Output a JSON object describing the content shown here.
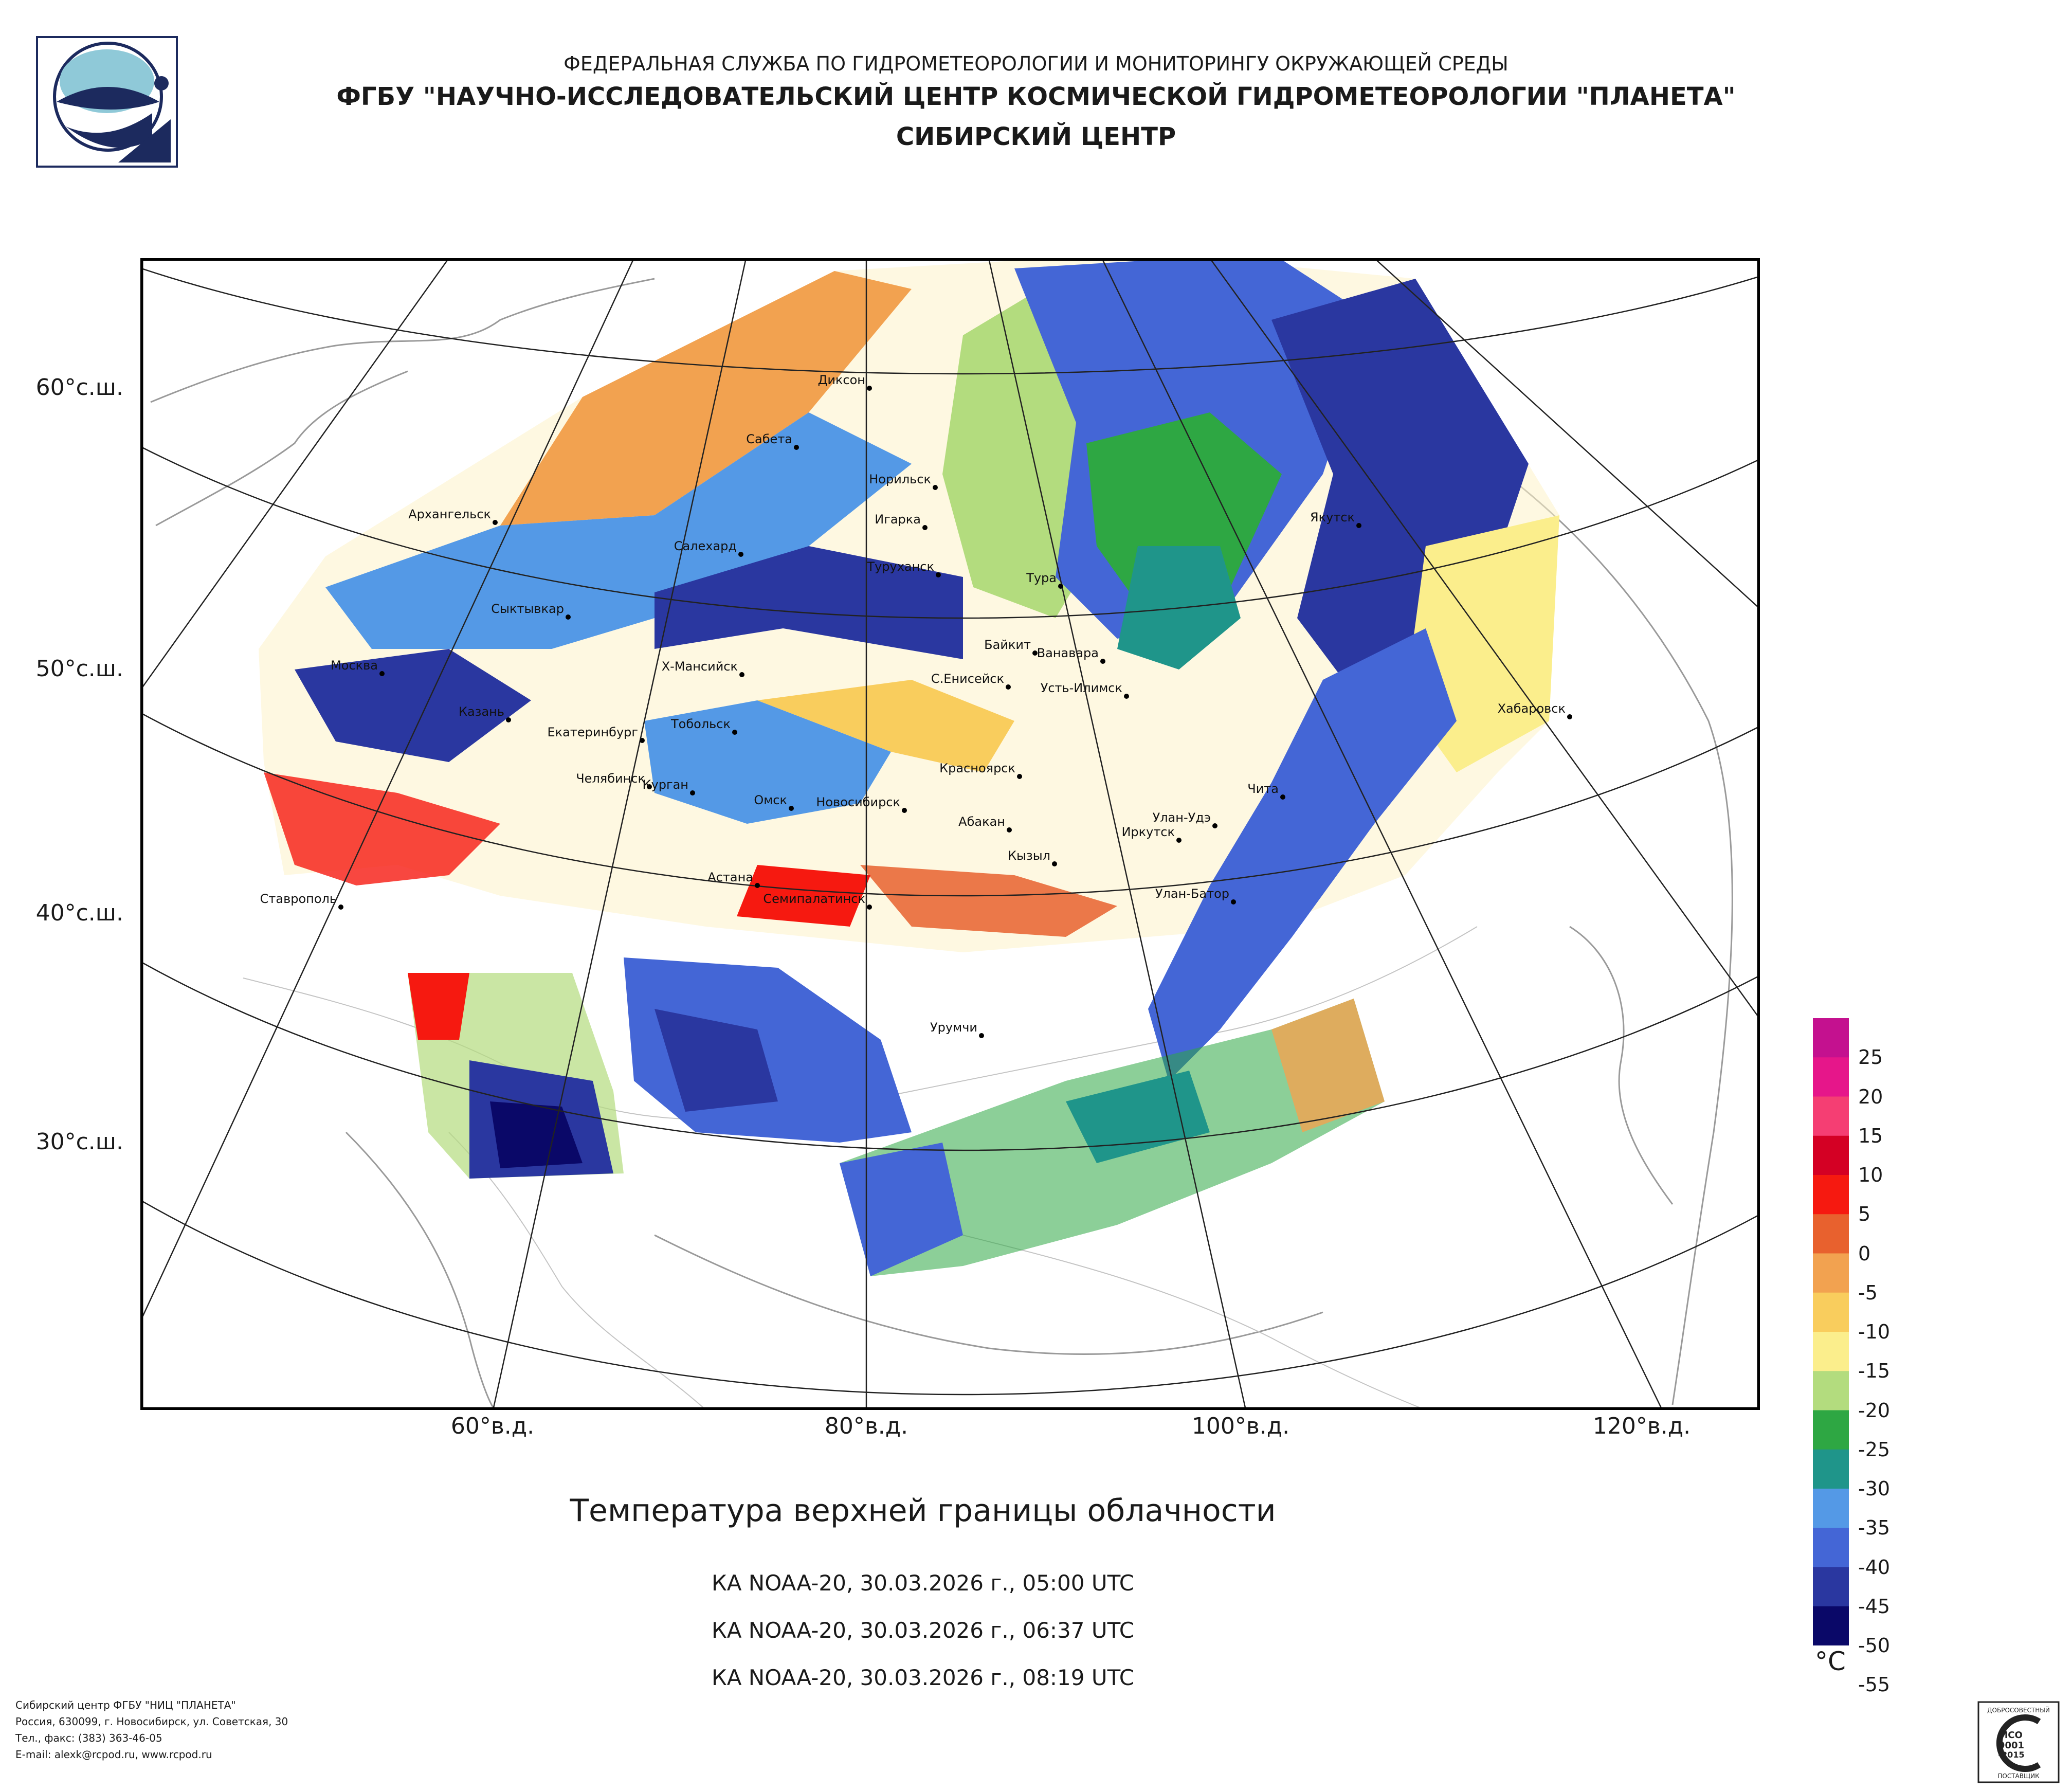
{
  "header": {
    "line1": "ФЕДЕРАЛЬНАЯ СЛУЖБА ПО ГИДРОМЕТЕОРОЛОГИИ И МОНИТОРИНГУ ОКРУЖАЮЩЕЙ СРЕДЫ",
    "line2": "ФГБУ \"НАУЧНО-ИССЛЕДОВАТЕЛЬСКИЙ ЦЕНТР КОСМИЧЕСКОЙ ГИДРОМЕТЕОРОЛОГИИ \"ПЛАНЕТА\"",
    "line3": "СИБИРСКИЙ ЦЕНТР"
  },
  "logo_icon": "planeta-logo-icon",
  "map": {
    "latitude_labels": [
      "60°с.ш.",
      "50°с.ш.",
      "40°с.ш.",
      "30°с.ш."
    ],
    "longitude_labels": [
      "60°в.д.",
      "80°в.д.",
      "100°в.д.",
      "120°в.д."
    ],
    "cities": [
      "Диксон",
      "Сабета",
      "Норильск",
      "Игарка",
      "Архангельск",
      "Салехард",
      "Туруханск",
      "Тура",
      "Якутск",
      "Сыктывкар",
      "Байкит",
      "Ванавара",
      "Москва",
      "Х-Мансийск",
      "С.Енисейск",
      "Усть-Илимск",
      "Хабаровск",
      "Казань",
      "Екатеринбург",
      "Тобольск",
      "Красноярск",
      "Челябинск",
      "Курган",
      "Омск",
      "Новосибирск",
      "Чита",
      "Абакан",
      "Улан-Удэ",
      "Иркутск",
      "Кызыл",
      "Ставрополь",
      "Астана",
      "Семипалатинск",
      "Улан-Батор",
      "Урумчи"
    ]
  },
  "title": "Температура верхней границы облачности",
  "passes": [
    "КА NOAA-20, 30.03.2026 г., 05:00 UTC",
    "КА NOAA-20, 30.03.2026 г., 06:37 UTC",
    "КА NOAA-20, 30.03.2026 г., 08:19 UTC"
  ],
  "legend": {
    "unit": "°C",
    "labels": [
      "25",
      "20",
      "15",
      "10",
      "5",
      "0",
      "-5",
      "-10",
      "-15",
      "-20",
      "-25",
      "-30",
      "-35",
      "-40",
      "-45",
      "-50",
      "-55"
    ],
    "colors": [
      "#c4118f",
      "#e6168a",
      "#f53e73",
      "#d40024",
      "#f61910",
      "#e8612e",
      "#f2a250",
      "#f9cd5d",
      "#fbee8c",
      "#b3dc7e",
      "#2ea743",
      "#1f958a",
      "#5499e6",
      "#4466d6",
      "#2a37a0",
      "#0a0868"
    ]
  },
  "footer": {
    "line1": "Сибирский центр ФГБУ \"НИЦ \"ПЛАНЕТА\"",
    "line2": "Россия, 630099, г. Новосибирск, ул. Советская, 30",
    "line3": "Тел., факс: (383) 363-46-05",
    "line4": "E-mail: alexk@rcpod.ru, www.rcpod.ru"
  },
  "certificate": {
    "top_text": "ДОБРОСОВЕСТНЫЙ",
    "line1": "ИСО",
    "line2": "9001",
    "line3": "-2015",
    "bottom_text": "ПОСТАВЩИК"
  }
}
